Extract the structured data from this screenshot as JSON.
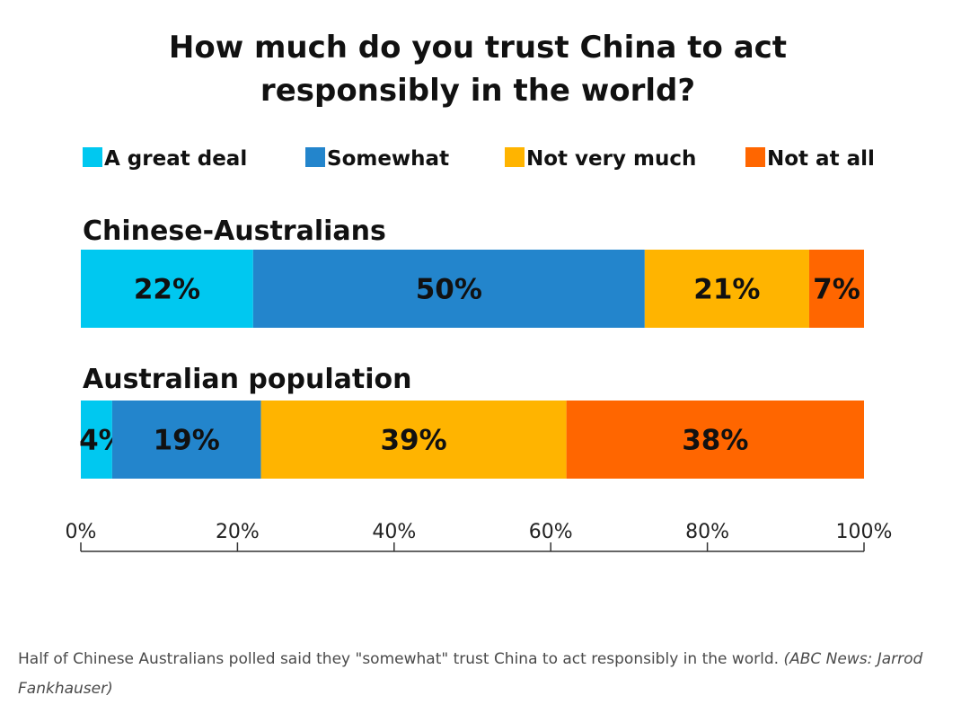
{
  "chart_data": {
    "type": "bar",
    "orientation": "horizontal",
    "stacked": true,
    "title_lines": [
      "How much do you trust China to act",
      "responsibly in the world?"
    ],
    "categories": [
      "Chinese-Australians",
      "Australian population"
    ],
    "series": [
      {
        "name": "A great deal",
        "color": "#00c8f0",
        "values": [
          22,
          4
        ],
        "labels": [
          "22%",
          "4%"
        ]
      },
      {
        "name": "Somewhat",
        "color": "#2385cc",
        "values": [
          50,
          19
        ],
        "labels": [
          "50%",
          "19%"
        ]
      },
      {
        "name": "Not very much",
        "color": "#ffb400",
        "values": [
          21,
          39
        ],
        "labels": [
          "21%",
          "39%"
        ]
      },
      {
        "name": "Not at all",
        "color": "#ff6600",
        "values": [
          7,
          38
        ],
        "labels": [
          "7%",
          "38%"
        ]
      }
    ],
    "xlim": [
      0,
      100
    ],
    "xticks": [
      0,
      20,
      40,
      60,
      80,
      100
    ],
    "xtick_labels": [
      "0%",
      "20%",
      "40%",
      "60%",
      "80%",
      "100%"
    ],
    "legend_position": "top",
    "grid": false
  },
  "caption": {
    "text": "Half of Chinese Australians polled said they \"somewhat\" trust China to act responsibly in the world.",
    "source": "(ABC News: Jarrod Fankhauser)"
  }
}
